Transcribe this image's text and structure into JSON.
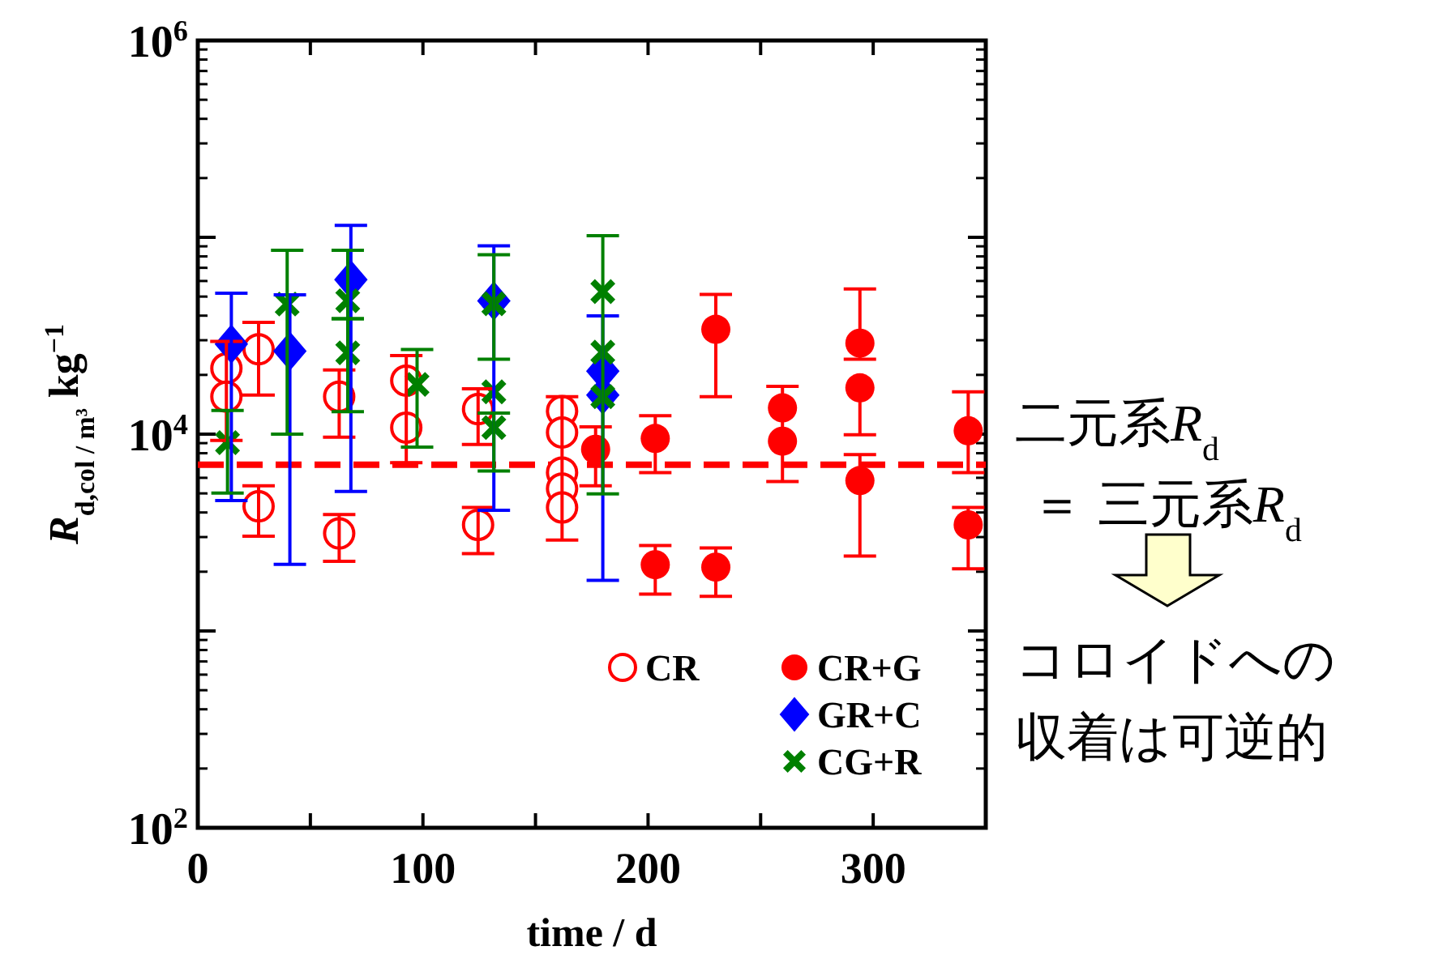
{
  "chart_data": {
    "type": "scatter",
    "xlabel": "time / d",
    "ylabel": "R$_{d,col / m³}$ kg$^{−1}$",
    "xlim": [
      0,
      350
    ],
    "xticks": [
      0,
      {
        "value": 50,
        "label": null
      },
      100,
      {
        "value": 150,
        "label": null
      },
      200,
      {
        "value": 250,
        "label": null
      },
      300
    ],
    "ylim": [
      100,
      1000000
    ],
    "yticks": [
      {
        "value": 100,
        "label": "10$^{2}$"
      },
      {
        "value": 1000,
        "label": null
      },
      {
        "value": 10000,
        "label": "10$^{4}$"
      },
      {
        "value": 100000,
        "label": null
      },
      {
        "value": 1000000,
        "label": "10$^{6}$"
      }
    ],
    "log": true,
    "grid": false,
    "legend": "bottom right",
    "series": [
      {
        "name": "CR",
        "color": "#ff0000",
        "marker": "circle-open",
        "x": [
          12.7,
          12.7,
          27,
          27,
          62.8,
          62.8,
          92.6,
          92.6,
          124.5,
          124.5,
          161.8,
          161.8,
          161.8,
          161.8,
          161.8
        ],
        "values": [
          21600,
          15500,
          27000,
          4300,
          15500,
          3130,
          18700,
          10800,
          13400,
          3460,
          13100,
          10200,
          6380,
          5290,
          4240
        ],
        "errors": [
          [
            9300,
            29600
          ],
          null,
          [
            15800,
            37000
          ],
          [
            3030,
            5460
          ],
          [
            9640,
            21200
          ],
          [
            2260,
            3900
          ],
          [
            7160,
            25100
          ],
          null,
          [
            8870,
            17000
          ],
          [
            2470,
            4240
          ],
          [
            2900,
            15500
          ],
          null,
          null,
          null,
          null
        ]
      },
      {
        "name": "CR+G",
        "color": "#ff0000",
        "marker": "circle",
        "x": [
          176.7,
          203.2,
          203.2,
          230.1,
          230.1,
          259.7,
          259.7,
          294.1,
          294.1,
          294.1,
          342.2,
          342.2
        ],
        "values": [
          8380,
          9510,
          2170,
          34100,
          2110,
          13600,
          9210,
          29000,
          17200,
          5810,
          10400,
          3460
        ],
        "errors": [
          [
            5460,
            10900
          ],
          [
            6380,
            12400
          ],
          [
            1540,
            2720
          ],
          [
            15500,
            51300
          ],
          [
            1500,
            2640
          ],
          [
            5740,
            17500
          ],
          null,
          [
            24000,
            54700
          ],
          [
            9930,
            17200
          ],
          [
            2400,
            7870
          ],
          [
            6380,
            16400
          ],
          [
            2070,
            4240
          ]
        ]
      },
      {
        "name": "GR+C",
        "color": "#0000ff",
        "marker": "diamond",
        "x": [
          14.9,
          40.9,
          68.0,
          131.5,
          179.9,
          179.9
        ],
        "values": [
          28700,
          26400,
          60900,
          47500,
          20900,
          15800
        ],
        "errors": [
          [
            4600,
            52000
          ],
          [
            2180,
            51000
          ],
          [
            5120,
            115000
          ],
          [
            4100,
            90500
          ],
          [
            1810,
            39900
          ],
          null
        ]
      },
      {
        "name": "CG+R",
        "color": "#008000",
        "marker": "cross",
        "x": [
          13.2,
          39.7,
          66.6,
          66.6,
          97.4,
          131.5,
          131.5,
          131.5,
          179.9,
          179.9,
          179.9
        ],
        "values": [
          9050,
          45800,
          47600,
          25900,
          17900,
          46000,
          16400,
          10800,
          53000,
          26100,
          15500
        ],
        "errors": [
          [
            5020,
            13200
          ],
          [
            10000,
            86000
          ],
          [
            38600,
            86000
          ],
          [
            13000,
            38600
          ],
          [
            8600,
            26900
          ],
          [
            24000,
            81500
          ],
          null,
          [
            6500,
            12800
          ],
          [
            4970,
            102000
          ],
          null,
          null
        ]
      }
    ],
    "ref_lines": [
      {
        "axis": "y",
        "value": 7000,
        "color": "#ff0000",
        "line_style": "dashed"
      }
    ],
    "annotations": [
      "二元系R$_{d}$",
      "＝ 三元系R$_{d}$",
      "コロイドへの",
      "収着は可逆的"
    ]
  }
}
